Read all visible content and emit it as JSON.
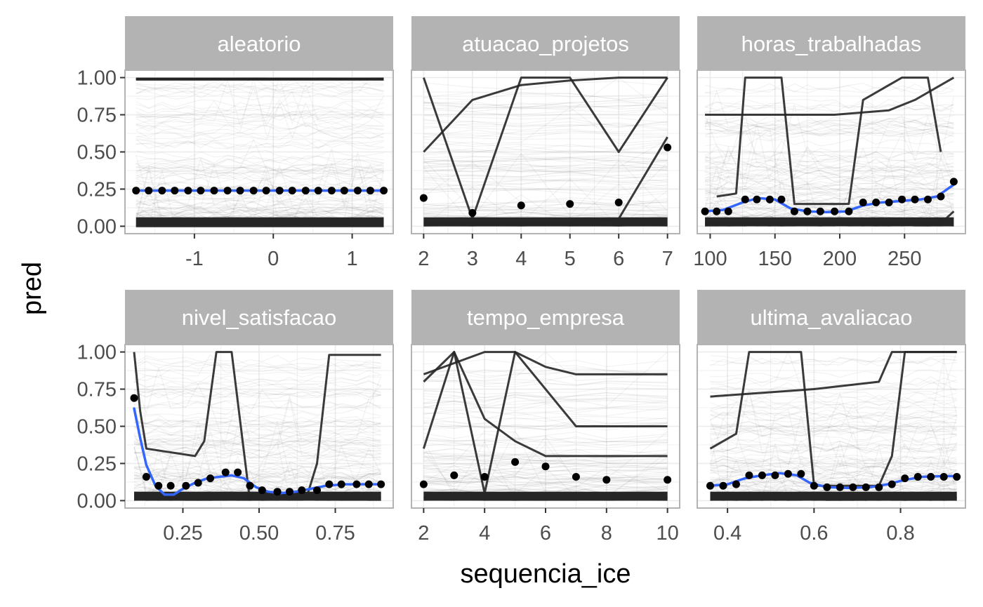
{
  "chart_data": {
    "type": "line",
    "xlabel": "sequencia_ice",
    "ylabel": "pred",
    "colors": {
      "strip_bg": "#b3b3b3",
      "strip_text": "#ffffff",
      "ice_lines": "#000000",
      "smooth": "#3366ff",
      "points": "#000000",
      "grid": "#ebebeb",
      "panel_border": "#b3b3b3"
    },
    "y_ticks": [
      "0.00",
      "0.25",
      "0.50",
      "0.75",
      "1.00"
    ],
    "y_tick_values": [
      0,
      0.25,
      0.5,
      0.75,
      1.0
    ],
    "ylim": [
      -0.05,
      1.05
    ],
    "panels": [
      {
        "title": "aleatorio",
        "xlim": [
          -1.88,
          1.52
        ],
        "x_ticks": [
          "-1",
          "0",
          "1"
        ],
        "x_tick_values": [
          -1,
          0,
          1
        ],
        "x": [
          -1.74,
          -1.58,
          -1.41,
          -1.25,
          -1.08,
          -0.92,
          -0.75,
          -0.58,
          -0.42,
          -0.25,
          -0.09,
          0.08,
          0.24,
          0.41,
          0.57,
          0.74,
          0.9,
          1.07,
          1.23,
          1.4
        ],
        "mean_pred": [
          0.24,
          0.24,
          0.24,
          0.24,
          0.24,
          0.24,
          0.24,
          0.24,
          0.24,
          0.24,
          0.24,
          0.24,
          0.24,
          0.24,
          0.24,
          0.24,
          0.24,
          0.24,
          0.24,
          0.24
        ],
        "smooth": [
          [
            -1.74,
            0.24
          ],
          [
            1.4,
            0.24
          ]
        ],
        "highlight_curves": [
          [
            [
              -1.74,
              0.99
            ],
            [
              1.4,
              0.99
            ]
          ],
          [
            [
              -1.74,
              0.0
            ],
            [
              1.4,
              0.0
            ]
          ]
        ]
      },
      {
        "title": "atuacao_projetos",
        "xlim": [
          1.75,
          7.25
        ],
        "x_ticks": [
          "2",
          "3",
          "4",
          "5",
          "6",
          "7"
        ],
        "x_tick_values": [
          2,
          3,
          4,
          5,
          6,
          7
        ],
        "x": [
          2,
          3,
          4,
          5,
          6,
          7
        ],
        "mean_pred": [
          0.19,
          0.09,
          0.14,
          0.15,
          0.16,
          0.53
        ],
        "smooth": [],
        "highlight_curves": [
          [
            [
              2,
              1.0
            ],
            [
              3,
              0.05
            ],
            [
              4,
              1.0
            ],
            [
              5,
              1.0
            ],
            [
              6,
              0.5
            ],
            [
              7,
              1.0
            ]
          ],
          [
            [
              2,
              0.5
            ],
            [
              3,
              0.85
            ],
            [
              4,
              0.95
            ],
            [
              5,
              0.98
            ],
            [
              6,
              1.0
            ],
            [
              7,
              1.0
            ]
          ],
          [
            [
              2,
              0.02
            ],
            [
              3,
              0.02
            ],
            [
              4,
              0.02
            ],
            [
              5,
              0.02
            ],
            [
              6,
              0.05
            ],
            [
              7,
              0.6
            ]
          ]
        ]
      },
      {
        "title": "horas_trabalhadas",
        "xlim": [
          90,
          297
        ],
        "x_ticks": [
          "100",
          "150",
          "200",
          "250"
        ],
        "x_tick_values": [
          100,
          150,
          200,
          250
        ],
        "x": [
          96,
          105,
          114,
          127,
          136,
          146,
          155,
          165,
          175,
          185,
          196,
          207,
          218,
          228,
          238,
          248,
          258,
          268,
          278,
          288
        ],
        "mean_pred": [
          0.1,
          0.1,
          0.1,
          0.18,
          0.18,
          0.18,
          0.18,
          0.1,
          0.1,
          0.1,
          0.1,
          0.1,
          0.16,
          0.16,
          0.16,
          0.18,
          0.18,
          0.18,
          0.2,
          0.3
        ],
        "smooth": [
          [
            96,
            0.1
          ],
          [
            110,
            0.11
          ],
          [
            125,
            0.16
          ],
          [
            137,
            0.19
          ],
          [
            150,
            0.18
          ],
          [
            162,
            0.12
          ],
          [
            175,
            0.1
          ],
          [
            190,
            0.095
          ],
          [
            205,
            0.1
          ],
          [
            218,
            0.14
          ],
          [
            232,
            0.16
          ],
          [
            248,
            0.17
          ],
          [
            262,
            0.18
          ],
          [
            275,
            0.2
          ],
          [
            288,
            0.28
          ]
        ],
        "highlight_curves": [
          [
            [
              105,
              0.2
            ],
            [
              120,
              0.22
            ],
            [
              127,
              1.0
            ],
            [
              155,
              1.0
            ],
            [
              165,
              0.15
            ],
            [
              207,
              0.15
            ],
            [
              218,
              0.85
            ],
            [
              228,
              0.9
            ],
            [
              248,
              1.0
            ],
            [
              268,
              1.0
            ],
            [
              278,
              0.5
            ]
          ],
          [
            [
              96,
              0.75
            ],
            [
              196,
              0.75
            ],
            [
              238,
              0.78
            ],
            [
              258,
              0.85
            ],
            [
              288,
              1.0
            ]
          ],
          [
            [
              96,
              0.02
            ],
            [
              278,
              0.02
            ],
            [
              288,
              0.1
            ]
          ]
        ]
      },
      {
        "title": "nivel_satisfacao",
        "xlim": [
          0.06,
          0.94
        ],
        "x_ticks": [
          "0.25",
          "0.50",
          "0.75"
        ],
        "x_tick_values": [
          0.25,
          0.5,
          0.75
        ],
        "x": [
          0.09,
          0.13,
          0.17,
          0.21,
          0.26,
          0.3,
          0.34,
          0.39,
          0.43,
          0.47,
          0.51,
          0.56,
          0.6,
          0.64,
          0.69,
          0.73,
          0.77,
          0.82,
          0.86,
          0.9
        ],
        "mean_pred": [
          0.69,
          0.16,
          0.1,
          0.1,
          0.1,
          0.12,
          0.15,
          0.19,
          0.19,
          0.1,
          0.07,
          0.06,
          0.06,
          0.07,
          0.07,
          0.11,
          0.11,
          0.11,
          0.11,
          0.11
        ],
        "smooth": [
          [
            0.09,
            0.62
          ],
          [
            0.11,
            0.42
          ],
          [
            0.13,
            0.24
          ],
          [
            0.16,
            0.1
          ],
          [
            0.19,
            0.04
          ],
          [
            0.22,
            0.04
          ],
          [
            0.25,
            0.08
          ],
          [
            0.29,
            0.12
          ],
          [
            0.33,
            0.15
          ],
          [
            0.37,
            0.16
          ],
          [
            0.41,
            0.17
          ],
          [
            0.45,
            0.15
          ],
          [
            0.49,
            0.09
          ],
          [
            0.53,
            0.06
          ],
          [
            0.57,
            0.05
          ],
          [
            0.62,
            0.06
          ],
          [
            0.67,
            0.08
          ],
          [
            0.72,
            0.1
          ],
          [
            0.78,
            0.11
          ],
          [
            0.85,
            0.11
          ],
          [
            0.9,
            0.11
          ]
        ],
        "highlight_curves": [
          [
            [
              0.09,
              1.0
            ],
            [
              0.11,
              0.6
            ],
            [
              0.13,
              0.35
            ],
            [
              0.29,
              0.3
            ],
            [
              0.32,
              0.4
            ],
            [
              0.36,
              1.0
            ],
            [
              0.41,
              1.0
            ],
            [
              0.47,
              0.0
            ]
          ],
          [
            [
              0.66,
              0.05
            ],
            [
              0.69,
              0.25
            ],
            [
              0.73,
              0.98
            ],
            [
              0.9,
              0.98
            ]
          ],
          [
            [
              0.09,
              0.02
            ],
            [
              0.9,
              0.02
            ]
          ]
        ]
      },
      {
        "title": "tempo_empresa",
        "xlim": [
          1.6,
          10.4
        ],
        "x_ticks": [
          "2",
          "4",
          "6",
          "8",
          "10"
        ],
        "x_tick_values": [
          2,
          4,
          6,
          8,
          10
        ],
        "x": [
          2,
          3,
          4,
          5,
          6,
          7,
          8,
          10
        ],
        "mean_pred": [
          0.11,
          0.17,
          0.16,
          0.26,
          0.23,
          0.16,
          0.14,
          0.14
        ],
        "smooth": [],
        "highlight_curves": [
          [
            [
              2,
              0.35
            ],
            [
              3,
              1.0
            ],
            [
              4,
              0.55
            ],
            [
              5,
              0.4
            ],
            [
              6,
              0.3
            ],
            [
              7,
              0.3
            ],
            [
              10,
              0.3
            ]
          ],
          [
            [
              2,
              0.8
            ],
            [
              3,
              1.0
            ],
            [
              4,
              0.05
            ],
            [
              5,
              1.0
            ],
            [
              6,
              0.9
            ],
            [
              7,
              0.85
            ],
            [
              10,
              0.85
            ]
          ],
          [
            [
              2,
              0.85
            ],
            [
              4,
              1.0
            ],
            [
              5,
              1.0
            ],
            [
              7,
              0.5
            ],
            [
              10,
              0.5
            ]
          ],
          [
            [
              2,
              0.02
            ],
            [
              10,
              0.02
            ]
          ]
        ]
      },
      {
        "title": "ultima_avaliacao",
        "xlim": [
          0.33,
          0.95
        ],
        "x_ticks": [
          "0.4",
          "0.6",
          "0.8"
        ],
        "x_tick_values": [
          0.4,
          0.6,
          0.8
        ],
        "x": [
          0.36,
          0.39,
          0.42,
          0.45,
          0.48,
          0.51,
          0.54,
          0.57,
          0.6,
          0.63,
          0.66,
          0.69,
          0.72,
          0.75,
          0.78,
          0.81,
          0.84,
          0.87,
          0.9,
          0.93
        ],
        "mean_pred": [
          0.1,
          0.1,
          0.11,
          0.17,
          0.17,
          0.17,
          0.18,
          0.18,
          0.1,
          0.09,
          0.09,
          0.09,
          0.09,
          0.09,
          0.11,
          0.15,
          0.16,
          0.16,
          0.16,
          0.16
        ],
        "smooth": [
          [
            0.36,
            0.1
          ],
          [
            0.4,
            0.11
          ],
          [
            0.44,
            0.15
          ],
          [
            0.48,
            0.17
          ],
          [
            0.52,
            0.185
          ],
          [
            0.56,
            0.17
          ],
          [
            0.59,
            0.12
          ],
          [
            0.63,
            0.09
          ],
          [
            0.68,
            0.085
          ],
          [
            0.73,
            0.09
          ],
          [
            0.77,
            0.11
          ],
          [
            0.81,
            0.14
          ],
          [
            0.85,
            0.16
          ],
          [
            0.9,
            0.165
          ],
          [
            0.93,
            0.165
          ]
        ],
        "highlight_curves": [
          [
            [
              0.36,
              0.35
            ],
            [
              0.42,
              0.45
            ],
            [
              0.45,
              1.0
            ],
            [
              0.57,
              1.0
            ],
            [
              0.6,
              0.1
            ],
            [
              0.75,
              0.1
            ],
            [
              0.78,
              0.3
            ],
            [
              0.81,
              1.0
            ],
            [
              0.93,
              1.0
            ]
          ],
          [
            [
              0.36,
              0.7
            ],
            [
              0.6,
              0.75
            ],
            [
              0.75,
              0.8
            ],
            [
              0.78,
              1.0
            ],
            [
              0.93,
              1.0
            ]
          ],
          [
            [
              0.36,
              0.02
            ],
            [
              0.93,
              0.02
            ]
          ]
        ]
      }
    ]
  }
}
